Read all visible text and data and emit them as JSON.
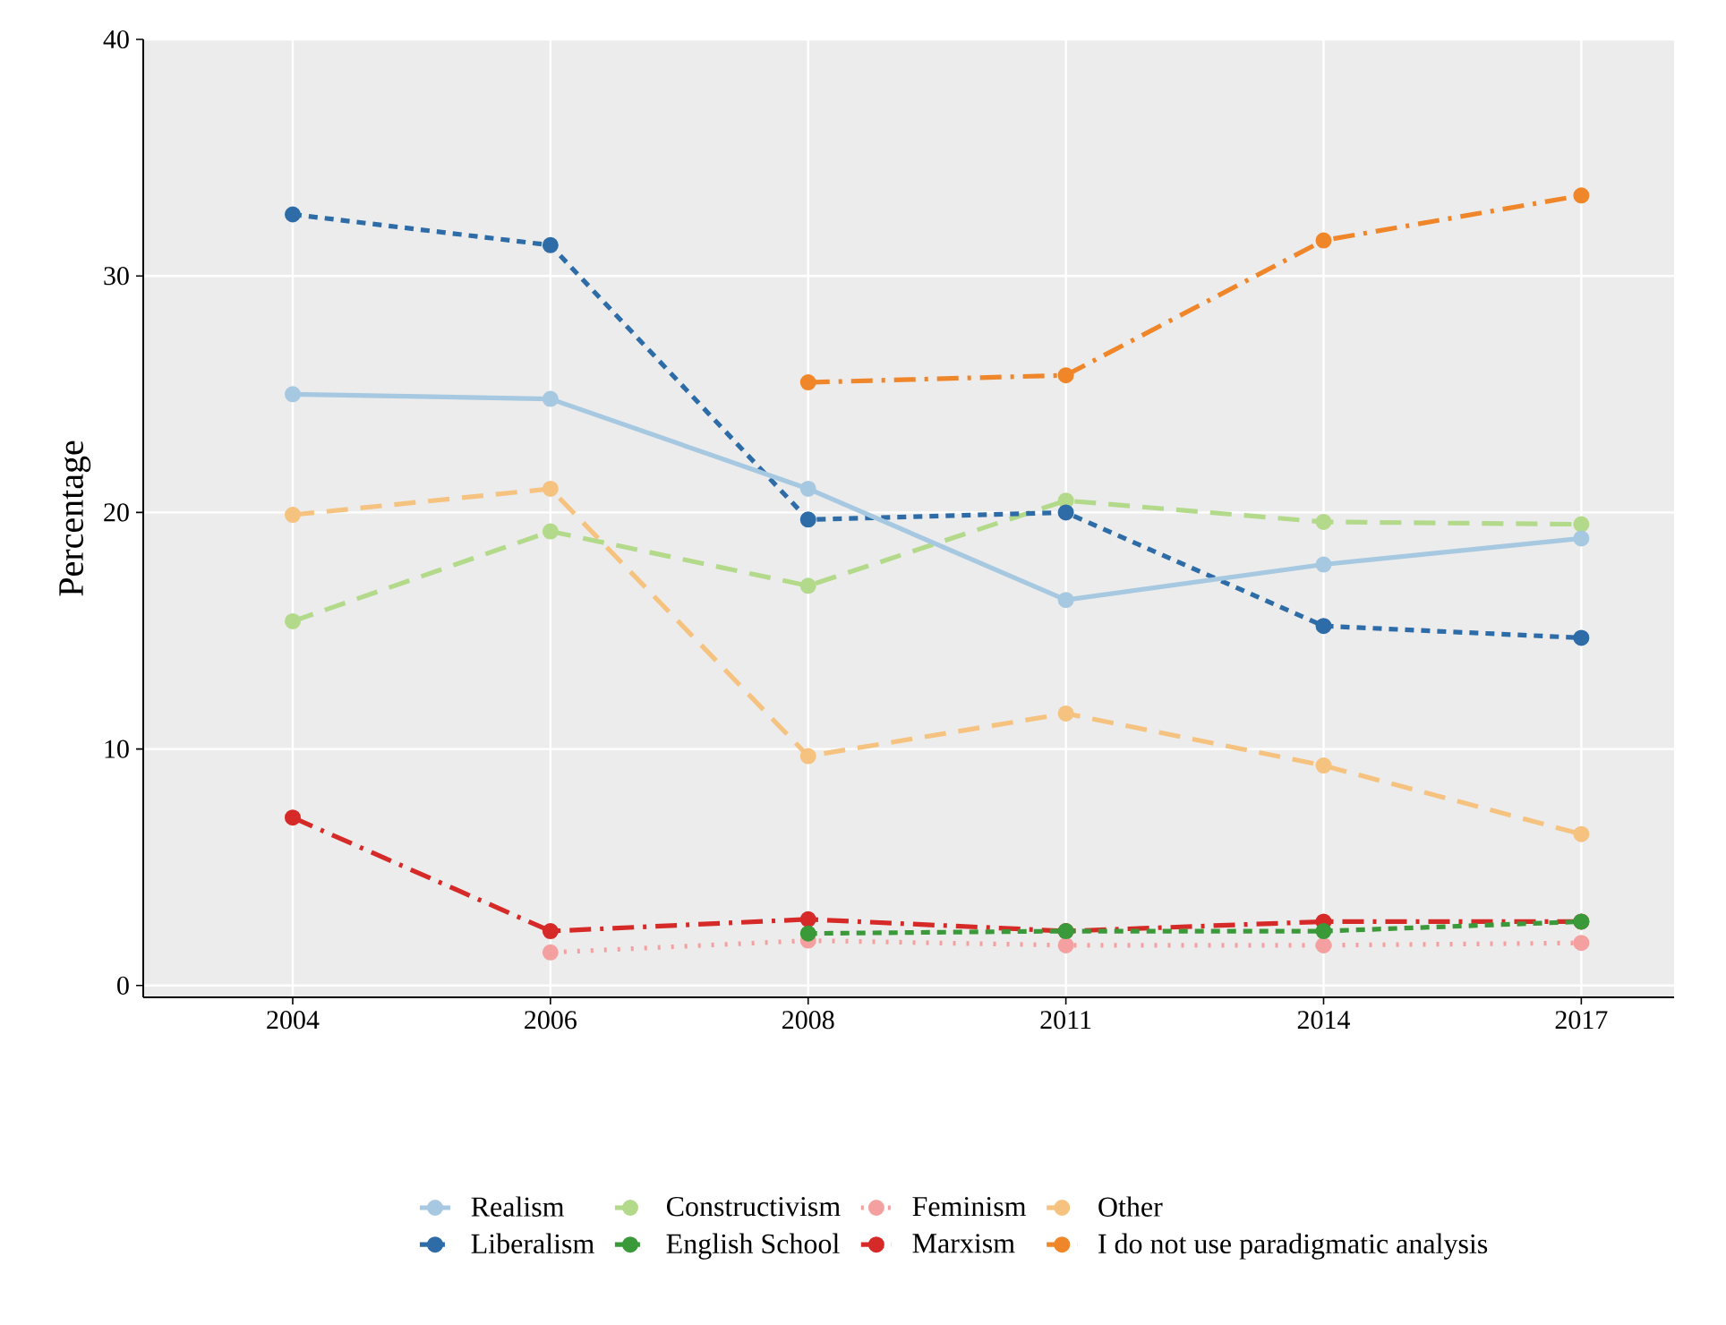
{
  "chart_data": {
    "type": "line",
    "ylabel": "Percentage",
    "categories": [
      "2004",
      "2006",
      "2008",
      "2011",
      "2014",
      "2017"
    ],
    "ylim": [
      -0.5,
      40
    ],
    "yticks": [
      0,
      10,
      20,
      30,
      40
    ],
    "grid": true,
    "legend": "bottom",
    "marker": "circle",
    "series": [
      {
        "name": "Realism",
        "color": "#a6c8e0",
        "line_style": "solid",
        "values": [
          25,
          24.8,
          21,
          16.3,
          17.8,
          18.9
        ]
      },
      {
        "name": "Liberalism",
        "color": "#2e6ca8",
        "line_style": "dashed",
        "values": [
          32.6,
          31.3,
          19.7,
          20,
          15.2,
          14.7
        ]
      },
      {
        "name": "Constructivism",
        "color": "#b3d98a",
        "line_style": "longdash",
        "values": [
          15.4,
          19.2,
          16.9,
          20.5,
          19.6,
          19.5
        ]
      },
      {
        "name": "English School",
        "color": "#3a9a3a",
        "line_style": "dashed",
        "values": [
          null,
          null,
          2.2,
          2.3,
          2.3,
          2.7
        ]
      },
      {
        "name": "Feminism",
        "color": "#f4a0a0",
        "line_style": "dotted",
        "values": [
          null,
          1.4,
          1.9,
          1.7,
          1.7,
          1.8
        ]
      },
      {
        "name": "Marxism",
        "color": "#d62a28",
        "line_style": "dashdot",
        "values": [
          7.1,
          2.3,
          2.8,
          2.3,
          2.7,
          2.7
        ]
      },
      {
        "name": "Other",
        "color": "#f5c27f",
        "line_style": "longdash",
        "values": [
          19.9,
          21,
          9.7,
          11.5,
          9.3,
          6.4
        ]
      },
      {
        "name": "I do not use paradigmatic analysis",
        "color": "#f0862a",
        "line_style": "dashdot",
        "values": [
          null,
          null,
          25.5,
          25.8,
          31.5,
          33.4
        ]
      }
    ]
  }
}
